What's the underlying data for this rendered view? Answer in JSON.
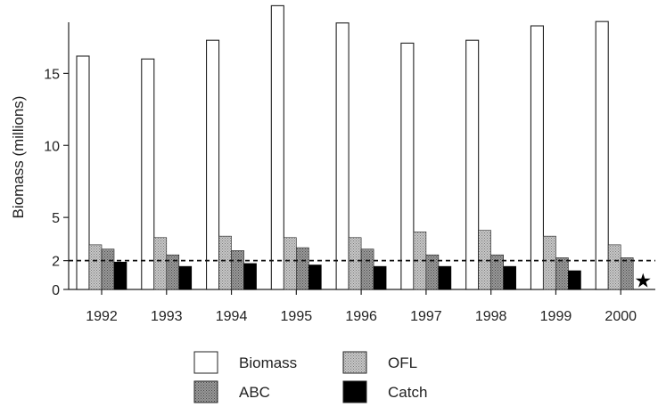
{
  "chart_data": {
    "type": "bar",
    "title": "",
    "ylabel": "Biomass (millions)",
    "xlabel": "",
    "ylim": [
      0,
      19.6
    ],
    "yticks": [
      0,
      2,
      5,
      10,
      15
    ],
    "categories": [
      "1992",
      "1993",
      "1994",
      "1995",
      "1996",
      "1997",
      "1998",
      "1999",
      "2000"
    ],
    "series": [
      {
        "name": "Biomass",
        "fill": "#ffffff",
        "values": [
          16.2,
          16.0,
          17.3,
          19.7,
          18.5,
          17.1,
          17.3,
          18.3,
          18.6
        ]
      },
      {
        "name": "OFL",
        "fill": "#bdbdbd",
        "values": [
          3.1,
          3.6,
          3.7,
          3.6,
          3.6,
          4.0,
          4.1,
          3.7,
          3.1
        ]
      },
      {
        "name": "ABC",
        "fill": "#8e8e8e",
        "values": [
          2.8,
          2.4,
          2.7,
          2.9,
          2.8,
          2.4,
          2.4,
          2.2,
          2.2
        ]
      },
      {
        "name": "Catch",
        "fill": "#000000",
        "values": [
          1.9,
          1.6,
          1.8,
          1.7,
          1.6,
          1.6,
          1.6,
          1.3,
          null
        ]
      }
    ],
    "reference_line": {
      "value": 2,
      "style": "dashed"
    },
    "annotations": [
      {
        "category": "2000",
        "symbol": "★",
        "value": 0.7
      }
    ],
    "legend": {
      "placement": "bottom",
      "entries": [
        "Biomass",
        "OFL",
        "ABC",
        "Catch"
      ]
    },
    "grid": false
  }
}
